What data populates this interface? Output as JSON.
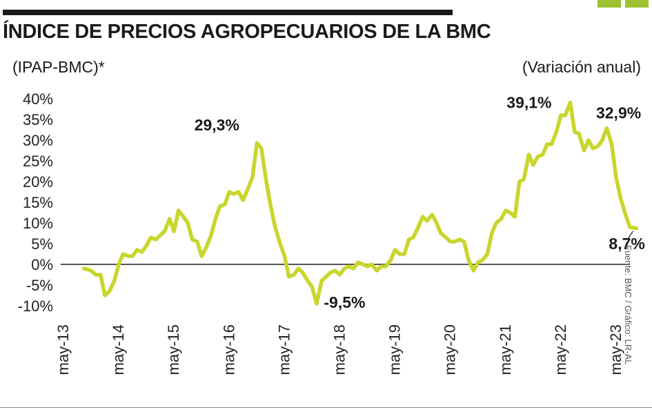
{
  "colors": {
    "line": "#c8d62d",
    "corner": "#9cc32f",
    "axis": "#1a1a1a"
  },
  "header": {
    "title": "ÍNDICE DE PRECIOS AGROPECUARIOS DE LA BMC",
    "index_label": "(IPAP-BMC)*",
    "unit_label": "(Variación anual)"
  },
  "source": "Fuente: BMC / Gráfico: LR-AL",
  "chart_data": {
    "type": "line",
    "title": "ÍNDICE DE PRECIOS AGROPECUARIOS DE LA BMC",
    "xlabel": "",
    "ylabel": "",
    "ylim": [
      -10,
      40
    ],
    "yticks": [
      40,
      35,
      30,
      25,
      20,
      15,
      10,
      5,
      0,
      -5,
      -10
    ],
    "ytick_labels": [
      "40%",
      "35%",
      "30%",
      "25%",
      "20%",
      "15%",
      "10%",
      "5%",
      "0%",
      "-5%",
      "-10%"
    ],
    "xtick_labels": [
      "may-13",
      "may-14",
      "may-15",
      "may-16",
      "may-17",
      "may-18",
      "may-19",
      "may-20",
      "may-21",
      "may-22",
      "may-23"
    ],
    "annotations": [
      {
        "label": "29,3%",
        "x": 2016.25,
        "y": 29.3
      },
      {
        "label": "-9,5%",
        "x": 2017.25,
        "y": -9.5
      },
      {
        "label": "39,1%",
        "x": 2022.0,
        "y": 39.1
      },
      {
        "label": "32,9%",
        "x": 2022.92,
        "y": 32.9
      },
      {
        "label": "8,7%",
        "x": 2023.37,
        "y": 8.7
      }
    ],
    "series": [
      {
        "x": [
          2013.37,
          2013.5,
          2013.58,
          2013.67,
          2013.75,
          2013.83,
          2013.92,
          2014.0,
          2014.08,
          2014.17,
          2014.25,
          2014.33,
          2014.42,
          2014.5,
          2014.58,
          2014.67,
          2014.75,
          2014.83,
          2014.92,
          2015.0,
          2015.08,
          2015.17,
          2015.25,
          2015.33,
          2015.42,
          2015.5,
          2015.58,
          2015.67,
          2015.75,
          2015.83,
          2015.92,
          2016.0,
          2016.08,
          2016.17,
          2016.25,
          2016.33,
          2016.42,
          2016.5,
          2016.58,
          2016.67,
          2016.75,
          2016.83,
          2016.92,
          2017.0,
          2017.08,
          2017.17,
          2017.25,
          2017.33,
          2017.42,
          2017.5,
          2017.58,
          2017.67,
          2017.75,
          2017.83,
          2017.92,
          2018.0,
          2018.08,
          2018.17,
          2018.25,
          2018.33,
          2018.42,
          2018.5,
          2018.58,
          2018.67,
          2018.75,
          2018.83,
          2018.92,
          2019.0,
          2019.08,
          2019.17,
          2019.25,
          2019.33,
          2019.42,
          2019.5,
          2019.58,
          2019.67,
          2019.75,
          2019.83,
          2019.92,
          2020.0,
          2020.08,
          2020.17,
          2020.25,
          2020.33,
          2020.42,
          2020.5,
          2020.58,
          2020.67,
          2020.75,
          2020.83,
          2020.92,
          2021.0,
          2021.08,
          2021.17,
          2021.25,
          2021.33,
          2021.42,
          2021.5,
          2021.58,
          2021.67,
          2021.75,
          2021.83,
          2021.92,
          2022.0,
          2022.08,
          2022.17,
          2022.25,
          2022.33,
          2022.42,
          2022.5,
          2022.58,
          2022.67,
          2022.75,
          2022.83,
          2022.92,
          2023.0,
          2023.08,
          2023.17,
          2023.25,
          2023.37
        ],
        "y": [
          -1.0,
          -1.5,
          -2.5,
          -2.5,
          -7.5,
          -6.5,
          -4.0,
          0.0,
          2.5,
          2.0,
          2.0,
          3.5,
          3.0,
          4.5,
          6.5,
          6.0,
          7.0,
          8.0,
          11.0,
          8.0,
          13.0,
          11.5,
          10.0,
          6.0,
          5.5,
          2.0,
          4.0,
          7.0,
          11.0,
          14.0,
          14.5,
          17.5,
          17.0,
          17.5,
          15.5,
          18.0,
          21.0,
          29.3,
          28.0,
          20.0,
          14.0,
          9.0,
          5.0,
          2.0,
          -3.0,
          -2.5,
          -1.0,
          -2.0,
          -4.0,
          -5.5,
          -9.5,
          -4.0,
          -3.0,
          -2.0,
          -1.5,
          -2.5,
          -1.0,
          -0.5,
          -1.0,
          0.5,
          0.0,
          -0.5,
          0.0,
          -1.5,
          -0.5,
          -0.5,
          1.0,
          3.5,
          2.5,
          2.5,
          6.0,
          6.5,
          9.0,
          11.5,
          10.5,
          12.0,
          10.0,
          7.5,
          6.5,
          5.5,
          5.5,
          6.0,
          5.5,
          1.0,
          -1.5,
          0.5,
          1.0,
          2.5,
          7.5,
          10.0,
          11.0,
          13.0,
          12.5,
          11.5,
          20.0,
          20.5,
          26.5,
          24.0,
          26.0,
          26.5,
          29.0,
          29.0,
          32.0,
          36.0,
          36.0,
          39.1,
          32.0,
          31.5,
          27.5,
          30.0,
          28.0,
          28.5,
          30.0,
          32.9,
          29.0,
          21.0,
          16.0,
          12.0,
          9.0,
          8.7
        ]
      }
    ]
  }
}
